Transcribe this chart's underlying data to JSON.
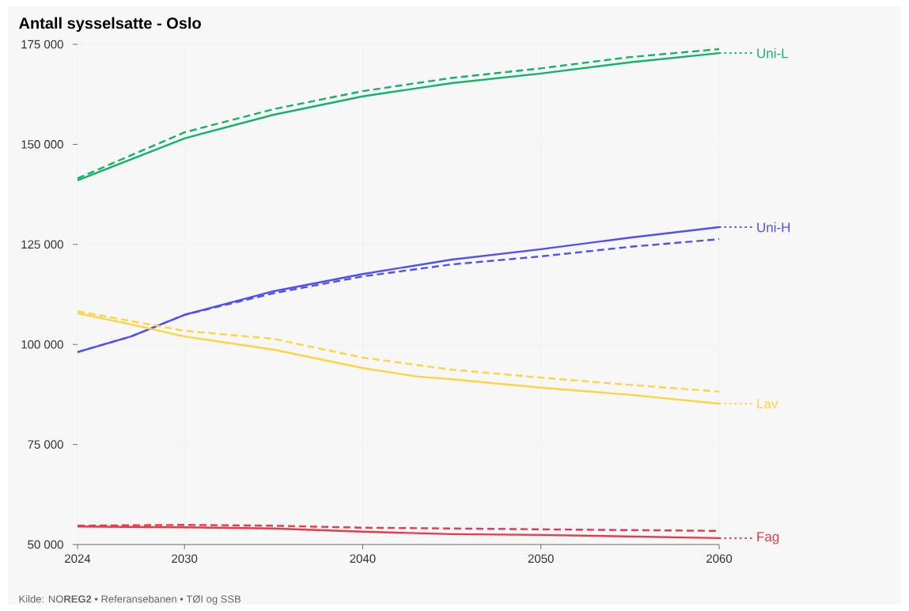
{
  "chart_data": {
    "type": "line",
    "title": "Antall sysselsatte - Oslo",
    "xlim": [
      2024,
      2060
    ],
    "xticks": [
      2024,
      2030,
      2040,
      2050,
      2060
    ],
    "ylim": [
      50000,
      175000
    ],
    "yticks": [
      {
        "value": 50000,
        "label": "50 000"
      },
      {
        "value": 75000,
        "label": "75 000"
      },
      {
        "value": 100000,
        "label": "100 000"
      },
      {
        "value": 125000,
        "label": "125 000"
      },
      {
        "value": 150000,
        "label": "150 000"
      },
      {
        "value": 175000,
        "label": "175 000"
      }
    ],
    "grid": true,
    "legend": "right",
    "series": [
      {
        "name": "Uni-L",
        "color": "#14b36b",
        "line_style": "solid",
        "x": [
          2024,
          2030,
          2035,
          2040,
          2045,
          2050,
          2055,
          2060
        ],
        "values": [
          141000,
          151500,
          157400,
          162000,
          165300,
          167700,
          170500,
          172800
        ]
      },
      {
        "color": "#14b36b",
        "line_style": "dashed",
        "x": [
          2024,
          2030,
          2035,
          2040,
          2045,
          2050,
          2055,
          2060
        ],
        "values": [
          141500,
          153000,
          158800,
          163300,
          166600,
          169000,
          171800,
          173800
        ]
      },
      {
        "name": "Uni-H",
        "color": "#5050f5",
        "line_style": "solid",
        "x": [
          2024,
          2027,
          2030,
          2035,
          2040,
          2045,
          2050,
          2055,
          2060
        ],
        "values": [
          98100,
          102000,
          107400,
          113300,
          117600,
          121200,
          123800,
          126700,
          129300
        ]
      },
      {
        "color": "#5050f5",
        "line_style": "dashed",
        "x": [
          2024,
          2027,
          2030,
          2035,
          2040,
          2045,
          2050,
          2055,
          2060
        ],
        "values": [
          98100,
          102000,
          107400,
          112800,
          117000,
          120000,
          122000,
          124400,
          126300
        ]
      },
      {
        "name": "Lav",
        "color": "#fdd446",
        "line_style": "solid",
        "x": [
          2024,
          2027,
          2030,
          2035,
          2040,
          2043,
          2045,
          2050,
          2055,
          2060
        ],
        "values": [
          107800,
          105000,
          102000,
          98700,
          94100,
          92000,
          91300,
          89200,
          87400,
          85200
        ]
      },
      {
        "color": "#fdd446",
        "line_style": "dashed",
        "x": [
          2024,
          2030,
          2035,
          2040,
          2045,
          2050,
          2055,
          2060
        ],
        "values": [
          108300,
          103400,
          101400,
          96700,
          93700,
          91700,
          89900,
          88200
        ]
      },
      {
        "name": "Fag",
        "color": "#e83a4b",
        "line_style": "solid",
        "x": [
          2024,
          2030,
          2035,
          2040,
          2045,
          2050,
          2055,
          2060
        ],
        "values": [
          54500,
          54300,
          54000,
          53200,
          52600,
          52400,
          52000,
          51600
        ]
      },
      {
        "color": "#e83a4b",
        "line_style": "dashed",
        "x": [
          2024,
          2030,
          2035,
          2040,
          2050,
          2060
        ],
        "values": [
          54700,
          54900,
          54700,
          54200,
          53800,
          53400
        ]
      }
    ],
    "annotations": [
      "Kilde: NO**REG2** • Referansebanen • TØI og SSB"
    ]
  }
}
